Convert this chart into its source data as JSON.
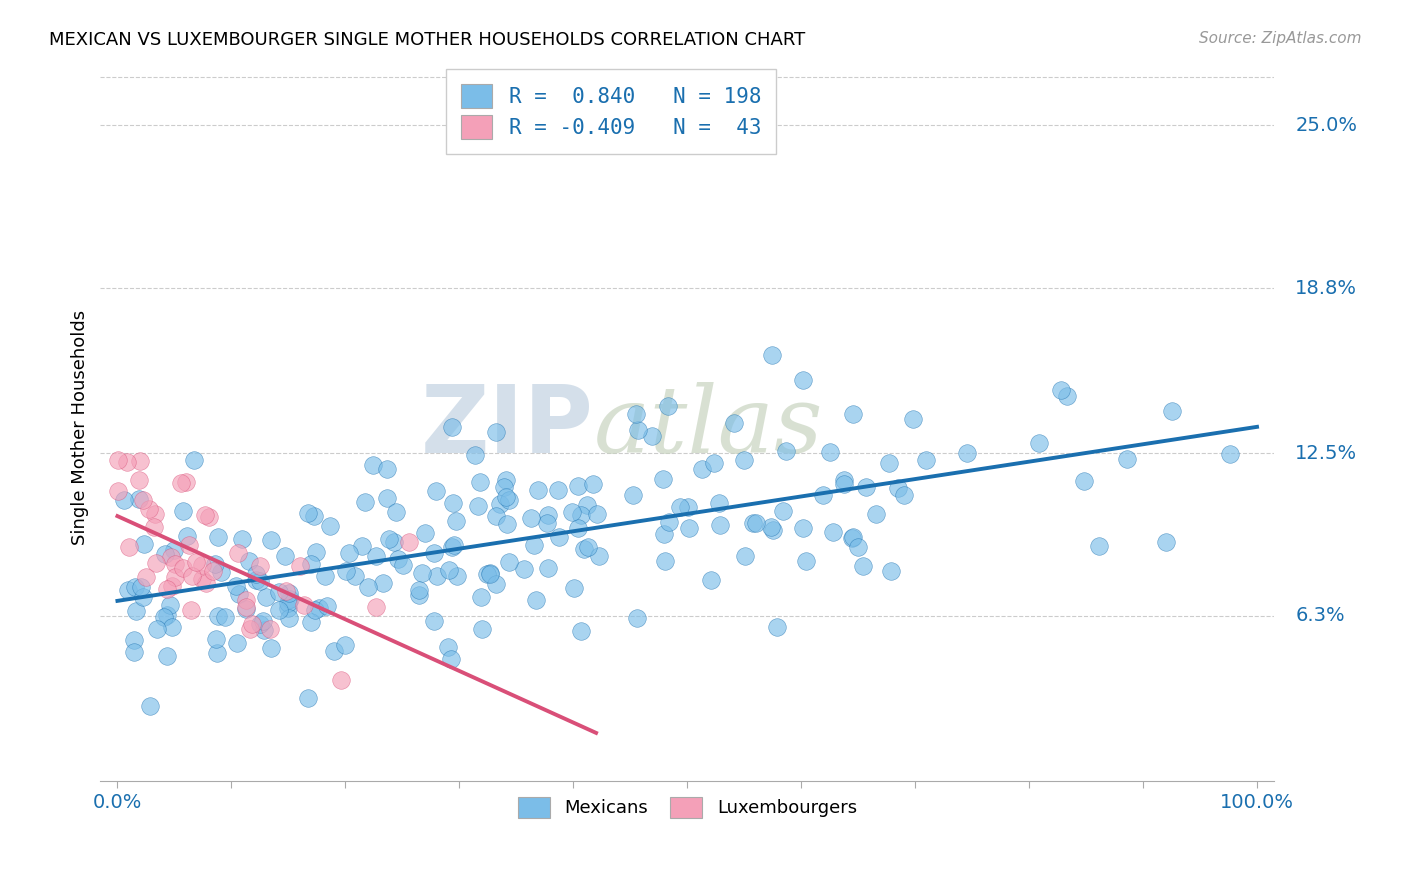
{
  "title": "MEXICAN VS LUXEMBOURGER SINGLE MOTHER HOUSEHOLDS CORRELATION CHART",
  "source": "Source: ZipAtlas.com",
  "ylabel": "Single Mother Households",
  "ytick_labels": [
    "6.3%",
    "12.5%",
    "18.8%",
    "25.0%"
  ],
  "ytick_values": [
    0.063,
    0.125,
    0.188,
    0.25
  ],
  "legend_label1": "R =  0.840   N = 198",
  "legend_label2": "R = -0.409   N =  43",
  "blue_color": "#7bbde8",
  "pink_color": "#f4a0b8",
  "blue_line_color": "#1a6faf",
  "pink_line_color": "#d94f78",
  "blue_r": 0.84,
  "blue_n": 198,
  "pink_r": -0.409,
  "pink_n": 43,
  "xlim": [
    0.0,
    1.0
  ],
  "ylim": [
    0.0,
    0.27
  ],
  "background_color": "#ffffff",
  "watermark_zip": "ZIP",
  "watermark_atlas": "atlas",
  "seed_blue": 7,
  "seed_pink": 13
}
